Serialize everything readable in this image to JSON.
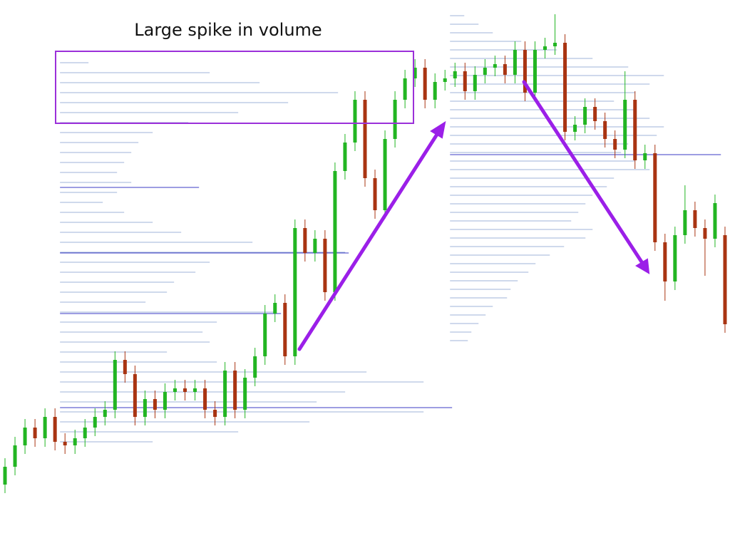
{
  "chart_data": {
    "type": "candlestick",
    "annotation": "Large spike in volume",
    "up_color": "#22b522",
    "down_color": "#a93412",
    "xlim": [
      -0.5,
      72.5
    ],
    "ylim": [
      0,
      769
    ],
    "volume_lim": [
      0,
      1024
    ],
    "open": [
      89,
      114,
      144,
      169,
      154,
      184,
      149,
      144,
      154,
      169,
      184,
      194,
      264,
      244,
      184,
      209,
      194,
      219,
      224,
      219,
      224,
      194,
      184,
      249,
      194,
      239,
      269,
      329,
      344,
      269,
      449,
      414,
      434,
      359,
      529,
      569,
      629,
      519,
      474,
      574,
      629,
      659,
      674,
      629,
      654,
      659,
      669,
      641,
      664,
      674,
      679,
      664,
      699,
      639,
      699,
      704,
      709,
      584,
      594,
      619,
      599,
      574,
      559,
      629,
      544,
      554,
      429,
      374,
      439,
      474,
      449,
      434,
      439
    ],
    "high": [
      126,
      156,
      181,
      181,
      196,
      196,
      161,
      166,
      181,
      196,
      206,
      276,
      276,
      256,
      221,
      221,
      231,
      236,
      236,
      236,
      236,
      206,
      261,
      261,
      251,
      281,
      341,
      356,
      356,
      461,
      461,
      446,
      446,
      541,
      581,
      641,
      641,
      531,
      586,
      641,
      671,
      686,
      686,
      666,
      671,
      681,
      681,
      676,
      686,
      691,
      691,
      711,
      711,
      711,
      716,
      749,
      721,
      606,
      631,
      631,
      611,
      586,
      669,
      641,
      566,
      566,
      441,
      451,
      509,
      486,
      461,
      496,
      451
    ],
    "low": [
      77,
      102,
      132,
      142,
      142,
      137,
      132,
      132,
      142,
      157,
      172,
      182,
      232,
      172,
      172,
      182,
      182,
      207,
      207,
      207,
      182,
      172,
      172,
      182,
      182,
      227,
      257,
      317,
      257,
      257,
      402,
      402,
      347,
      347,
      517,
      557,
      507,
      462,
      462,
      562,
      617,
      647,
      617,
      617,
      642,
      647,
      629,
      629,
      652,
      662,
      652,
      652,
      627,
      627,
      687,
      692,
      572,
      572,
      582,
      587,
      562,
      547,
      547,
      532,
      532,
      417,
      347,
      362,
      427,
      437,
      382,
      422,
      302
    ],
    "close": [
      114,
      144,
      169,
      154,
      184,
      149,
      144,
      154,
      169,
      184,
      194,
      264,
      244,
      184,
      209,
      194,
      219,
      224,
      219,
      224,
      194,
      184,
      249,
      194,
      239,
      269,
      329,
      344,
      269,
      449,
      414,
      434,
      359,
      529,
      569,
      629,
      519,
      474,
      574,
      629,
      659,
      674,
      629,
      654,
      659,
      669,
      641,
      664,
      674,
      679,
      664,
      699,
      639,
      699,
      704,
      709,
      584,
      594,
      619,
      599,
      574,
      559,
      629,
      544,
      554,
      429,
      374,
      439,
      474,
      449,
      434,
      484,
      314
    ],
    "profiles": [
      {
        "start": 6,
        "color": "#9fb3d8",
        "levels": [
          681,
          667,
          653,
          639,
          625,
          611,
          597,
          583,
          569,
          555,
          541,
          527,
          513,
          499,
          485,
          471,
          457,
          443,
          429,
          415,
          401,
          387,
          373,
          359,
          345,
          331,
          317,
          303,
          289,
          275,
          261,
          247,
          233,
          219,
          205,
          191,
          177,
          163,
          149
        ],
        "volumes": [
          40,
          210,
          280,
          390,
          320,
          250,
          180,
          130,
          110,
          100,
          90,
          80,
          100,
          80,
          60,
          90,
          130,
          170,
          270,
          400,
          210,
          190,
          160,
          150,
          120,
          300,
          220,
          200,
          210,
          150,
          220,
          430,
          510,
          400,
          360,
          510,
          350,
          250,
          130
        ],
        "peaks": {
          "color": "#3b3bc4",
          "levels": [
            506,
            414,
            329,
            197
          ],
          "volumes": [
            195,
            405,
            310,
            550
          ]
        }
      },
      {
        "start": 45,
        "color": "#9fb3d8",
        "levels": [
          747,
          735,
          723,
          711,
          699,
          687,
          675,
          663,
          651,
          639,
          627,
          615,
          603,
          591,
          579,
          567,
          555,
          543,
          531,
          519,
          507,
          495,
          483,
          471,
          459,
          447,
          435,
          423,
          411,
          399,
          387,
          375,
          363,
          351,
          339,
          327,
          315,
          303,
          291
        ],
        "volumes": [
          20,
          40,
          60,
          100,
          150,
          200,
          250,
          300,
          280,
          260,
          230,
          260,
          280,
          300,
          290,
          250,
          240,
          260,
          280,
          230,
          220,
          200,
          190,
          180,
          170,
          200,
          190,
          160,
          140,
          120,
          110,
          95,
          85,
          80,
          60,
          50,
          40,
          30,
          25
        ],
        "peaks": {
          "color": "#3b3bc4",
          "levels": [
            552
          ],
          "volumes": [
            380
          ]
        }
      }
    ]
  }
}
